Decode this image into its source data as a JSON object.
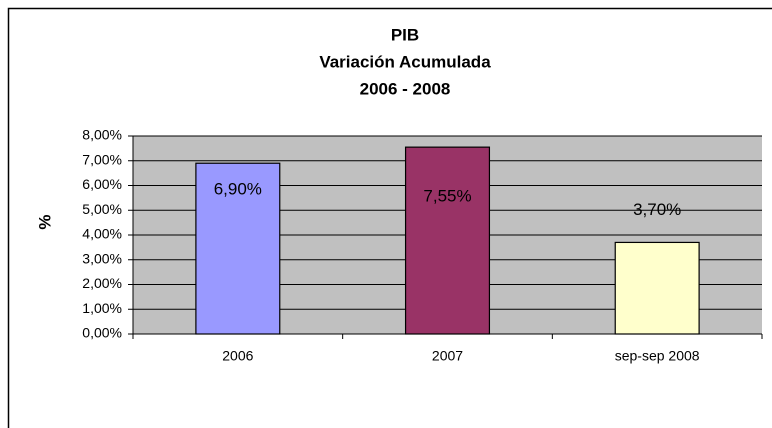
{
  "chart_data": {
    "type": "bar",
    "title": [
      "PIB",
      "Variación Acumulada",
      "2006 - 2008"
    ],
    "y_label": "%",
    "categories": [
      "2006",
      "2007",
      "sep-sep 2008"
    ],
    "values": [
      6.9,
      7.55,
      3.7
    ],
    "value_labels": [
      "6,90%",
      "7,55%",
      "3,70%"
    ],
    "colors": [
      "#9999ff",
      "#993366",
      "#ffffcc"
    ],
    "ylim": [
      0,
      8
    ],
    "yticks": [
      {
        "value": 0,
        "label": "0,00%"
      },
      {
        "value": 1,
        "label": "1,00%"
      },
      {
        "value": 2,
        "label": "2,00%"
      },
      {
        "value": 3,
        "label": "3,00%"
      },
      {
        "value": 4,
        "label": "4,00%"
      },
      {
        "value": 5,
        "label": "5,00%"
      },
      {
        "value": 6,
        "label": "6,00%"
      },
      {
        "value": 7,
        "label": "7,00%"
      },
      {
        "value": 8,
        "label": "8,00%"
      }
    ],
    "grid": true
  }
}
